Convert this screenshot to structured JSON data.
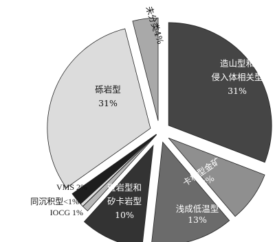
{
  "chart_data": {
    "type": "pie",
    "title": "",
    "exploded": true,
    "slices": [
      {
        "line1": "造山型和",
        "line2": "侵入体相关型",
        "pct_label": "31%",
        "value": 31,
        "color": "#454545",
        "text_color": "#ffffff"
      },
      {
        "line1": "卡林型金矿",
        "line2": "",
        "pct_label": "8%",
        "value": 8,
        "color": "#8f8f8f",
        "text_color": "#ffffff"
      },
      {
        "line1": "浅成低温型",
        "line2": "",
        "pct_label": "13%",
        "value": 13,
        "color": "#6b6b6b",
        "text_color": "#ffffff"
      },
      {
        "line1": "斑岩型和",
        "line2": "矽卡岩型",
        "pct_label": "10%",
        "value": 10,
        "color": "#333333",
        "text_color": "#ffffff"
      },
      {
        "line1": "IOCG 1%",
        "line2": "",
        "pct_label": "",
        "value": 1,
        "color": "#b8b8b8",
        "text_color": "#111111"
      },
      {
        "line1": "同沉积型<1%",
        "line2": "",
        "pct_label": "",
        "value": 0.5,
        "color": "#e0e0e0",
        "text_color": "#111111"
      },
      {
        "line1": "VMS 2%",
        "line2": "",
        "pct_label": "",
        "value": 2,
        "color": "#1e1e1e",
        "text_color": "#111111"
      },
      {
        "line1": "砾岩型",
        "line2": "",
        "pct_label": "31%",
        "value": 31,
        "color": "#dcdcdc",
        "text_color": "#111111"
      },
      {
        "line1": "未分类4%",
        "line2": "",
        "pct_label": "",
        "value": 4,
        "color": "#a9a9a9",
        "text_color": "#111111"
      }
    ]
  }
}
